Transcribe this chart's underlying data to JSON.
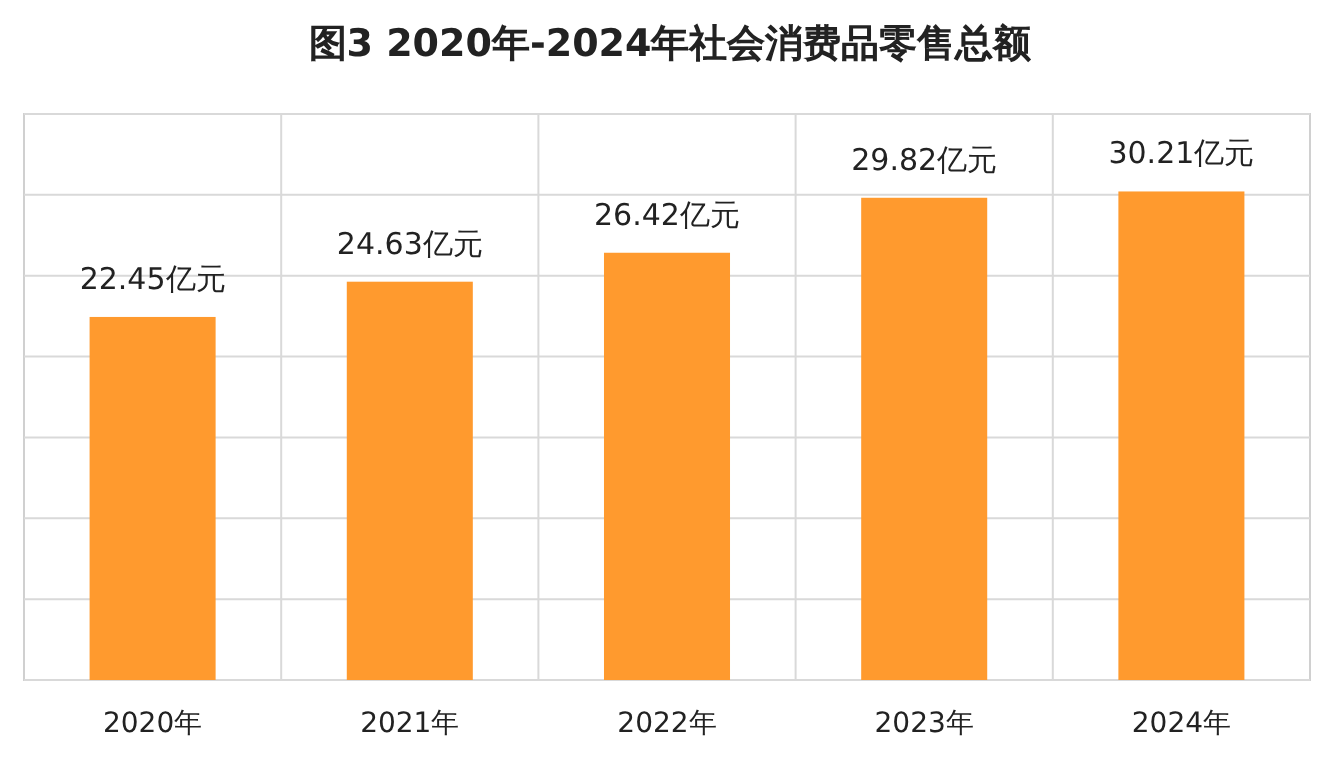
{
  "chart_data": {
    "type": "bar",
    "title": "图3  2020年-2024年社会消费品零售总额",
    "categories": [
      "2020年",
      "2021年",
      "2022年",
      "2023年",
      "2024年"
    ],
    "values": [
      22.45,
      24.63,
      26.42,
      29.82,
      30.21
    ],
    "value_labels": [
      "22.45亿元",
      "24.63亿元",
      "26.42亿元",
      "29.82亿元",
      "30.21亿元"
    ],
    "color": "#ff9a2e",
    "ylim": [
      0,
      35
    ],
    "yticks": [
      {
        "value": 0,
        "label": null
      },
      {
        "value": 5,
        "label": null
      },
      {
        "value": 10,
        "label": null
      },
      {
        "value": 15,
        "label": null
      },
      {
        "value": 20,
        "label": null
      },
      {
        "value": 25,
        "label": null
      },
      {
        "value": 30,
        "label": null
      },
      {
        "value": 35,
        "label": null
      }
    ],
    "grid": true,
    "tick_labels": "x"
  }
}
